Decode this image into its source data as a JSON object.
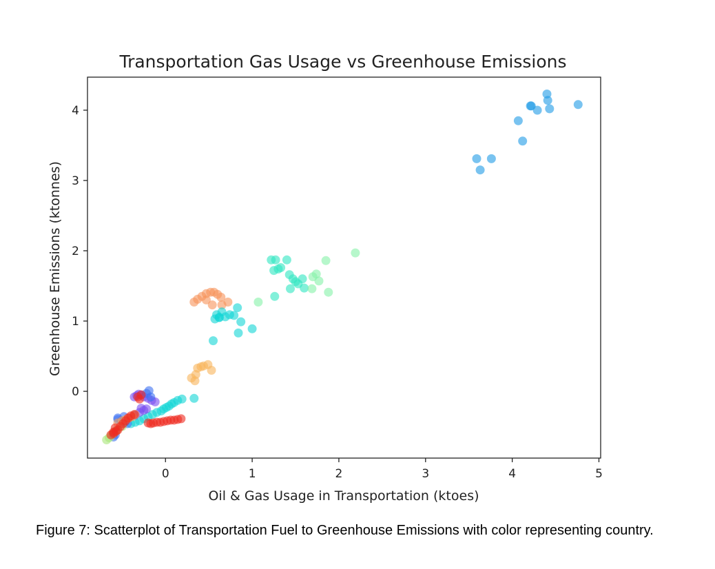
{
  "chart_data": {
    "type": "scatter",
    "title": "Transportation Gas Usage vs Greenhouse Emissions",
    "xlabel": "Oil & Gas Usage in Transportation (ktoes)",
    "ylabel": "Greenhouse Emissions (ktonnes)",
    "xlim": [
      -0.9,
      5.02
    ],
    "ylim": [
      -0.95,
      4.47
    ],
    "x_ticks": [
      0,
      1,
      2,
      3,
      4,
      5
    ],
    "y_ticks": [
      0,
      1,
      2,
      3,
      4
    ],
    "grid": false,
    "legend": "none",
    "series": [
      {
        "color": "#1f9be6",
        "points": [
          [
            3.59,
            3.31
          ],
          [
            3.63,
            3.15
          ],
          [
            3.76,
            3.31
          ],
          [
            4.07,
            3.85
          ],
          [
            4.12,
            3.56
          ],
          [
            4.21,
            4.06
          ],
          [
            4.22,
            4.06
          ],
          [
            4.29,
            4.0
          ],
          [
            4.4,
            4.23
          ],
          [
            4.41,
            4.14
          ],
          [
            4.43,
            4.02
          ],
          [
            4.76,
            4.08
          ]
        ]
      },
      {
        "color": "#2ee6c2",
        "points": [
          [
            1.22,
            1.87
          ],
          [
            1.25,
            1.72
          ],
          [
            1.27,
            1.87
          ],
          [
            1.3,
            1.74
          ],
          [
            1.33,
            1.76
          ],
          [
            1.4,
            1.87
          ],
          [
            1.43,
            1.66
          ],
          [
            1.44,
            1.46
          ],
          [
            1.47,
            1.6
          ],
          [
            1.5,
            1.56
          ],
          [
            1.53,
            1.53
          ],
          [
            1.58,
            1.6
          ],
          [
            1.6,
            1.47
          ],
          [
            1.26,
            1.35
          ]
        ]
      },
      {
        "color": "#86f2a8",
        "points": [
          [
            1.07,
            1.27
          ],
          [
            1.69,
            1.46
          ],
          [
            1.7,
            1.63
          ],
          [
            1.74,
            1.67
          ],
          [
            1.77,
            1.57
          ],
          [
            1.85,
            1.86
          ],
          [
            1.88,
            1.41
          ],
          [
            2.19,
            1.97
          ]
        ]
      },
      {
        "color": "#f7925a",
        "points": [
          [
            0.33,
            1.27
          ],
          [
            0.37,
            1.31
          ],
          [
            0.42,
            1.35
          ],
          [
            0.47,
            1.39
          ],
          [
            0.52,
            1.41
          ],
          [
            0.56,
            1.41
          ],
          [
            0.6,
            1.38
          ],
          [
            0.64,
            1.34
          ],
          [
            0.72,
            1.27
          ],
          [
            0.54,
            1.23
          ],
          [
            0.47,
            1.3
          ],
          [
            0.65,
            1.23
          ]
        ]
      },
      {
        "color": "#f8b45a",
        "points": [
          [
            0.3,
            0.19
          ],
          [
            0.34,
            0.15
          ],
          [
            0.37,
            0.33
          ],
          [
            0.41,
            0.35
          ],
          [
            0.44,
            0.36
          ],
          [
            0.49,
            0.38
          ],
          [
            0.53,
            0.3
          ],
          [
            0.35,
            0.24
          ]
        ]
      },
      {
        "color": "#13d6d6",
        "points": [
          [
            0.57,
            1.03
          ],
          [
            0.59,
            1.09
          ],
          [
            0.62,
            1.05
          ],
          [
            0.65,
            1.13
          ],
          [
            0.69,
            1.06
          ],
          [
            0.74,
            1.09
          ],
          [
            0.79,
            1.08
          ],
          [
            0.83,
            1.19
          ],
          [
            0.87,
            0.99
          ],
          [
            0.84,
            0.83
          ],
          [
            1.0,
            0.89
          ],
          [
            0.55,
            0.72
          ],
          [
            0.62,
            1.05
          ],
          [
            -0.05,
            -0.28
          ],
          [
            -0.02,
            -0.25
          ],
          [
            0.01,
            -0.23
          ],
          [
            0.04,
            -0.21
          ],
          [
            0.07,
            -0.18
          ],
          [
            0.1,
            -0.16
          ],
          [
            0.14,
            -0.13
          ],
          [
            0.19,
            -0.11
          ],
          [
            0.33,
            -0.1
          ],
          [
            -0.1,
            -0.3
          ],
          [
            -0.15,
            -0.33
          ],
          [
            -0.2,
            -0.36
          ],
          [
            -0.25,
            -0.39
          ],
          [
            -0.3,
            -0.42
          ],
          [
            -0.35,
            -0.44
          ],
          [
            -0.4,
            -0.46
          ]
        ]
      },
      {
        "color": "#7a4ef0",
        "points": [
          [
            -0.36,
            -0.08
          ],
          [
            -0.33,
            -0.06
          ],
          [
            -0.31,
            -0.04
          ],
          [
            -0.28,
            -0.05
          ],
          [
            -0.25,
            -0.08
          ],
          [
            -0.2,
            -0.1
          ],
          [
            -0.16,
            -0.13
          ],
          [
            -0.12,
            -0.15
          ],
          [
            -0.28,
            -0.24
          ],
          [
            -0.25,
            -0.27
          ],
          [
            -0.22,
            -0.25
          ],
          [
            -0.3,
            -0.3
          ],
          [
            -0.35,
            -0.34
          ]
        ]
      },
      {
        "color": "#3d72f2",
        "points": [
          [
            -0.22,
            -0.03
          ],
          [
            -0.19,
            0.01
          ],
          [
            -0.17,
            -0.08
          ],
          [
            -0.55,
            -0.4
          ],
          [
            -0.51,
            -0.42
          ],
          [
            -0.47,
            -0.44
          ],
          [
            -0.44,
            -0.46
          ],
          [
            -0.58,
            -0.62
          ],
          [
            -0.6,
            -0.65
          ],
          [
            -0.55,
            -0.38
          ],
          [
            -0.48,
            -0.36
          ]
        ]
      },
      {
        "color": "#a8e678",
        "points": [
          [
            -0.68,
            -0.69
          ],
          [
            -0.65,
            -0.66
          ],
          [
            -0.62,
            -0.62
          ],
          [
            -0.59,
            -0.58
          ],
          [
            -0.56,
            -0.55
          ],
          [
            -0.5,
            -0.5
          ]
        ]
      },
      {
        "color": "#f0a060",
        "points": [
          [
            -0.55,
            -0.45
          ],
          [
            -0.5,
            -0.42
          ],
          [
            -0.46,
            -0.4
          ],
          [
            -0.42,
            -0.38
          ],
          [
            -0.38,
            -0.36
          ],
          [
            -0.35,
            -0.33
          ]
        ]
      },
      {
        "color": "#ee2a20",
        "points": [
          [
            -0.63,
            -0.62
          ],
          [
            -0.6,
            -0.6
          ],
          [
            -0.57,
            -0.57
          ],
          [
            -0.55,
            -0.55
          ],
          [
            -0.52,
            -0.5
          ],
          [
            -0.49,
            -0.46
          ],
          [
            -0.46,
            -0.42
          ],
          [
            -0.43,
            -0.38
          ],
          [
            -0.4,
            -0.35
          ],
          [
            -0.36,
            -0.33
          ],
          [
            -0.3,
            -0.11
          ],
          [
            -0.28,
            -0.05
          ],
          [
            -0.32,
            -0.08
          ],
          [
            -0.2,
            -0.45
          ],
          [
            -0.17,
            -0.46
          ],
          [
            -0.14,
            -0.45
          ],
          [
            -0.1,
            -0.44
          ],
          [
            -0.06,
            -0.44
          ],
          [
            -0.02,
            -0.43
          ],
          [
            0.02,
            -0.42
          ],
          [
            0.06,
            -0.41
          ],
          [
            0.1,
            -0.41
          ],
          [
            0.14,
            -0.4
          ],
          [
            0.18,
            -0.39
          ],
          [
            -0.58,
            -0.52
          ],
          [
            -0.6,
            -0.58
          ]
        ]
      }
    ]
  },
  "caption": "Figure 7: Scatterplot of Transportation Fuel to Greenhouse Emissions with color representing country."
}
